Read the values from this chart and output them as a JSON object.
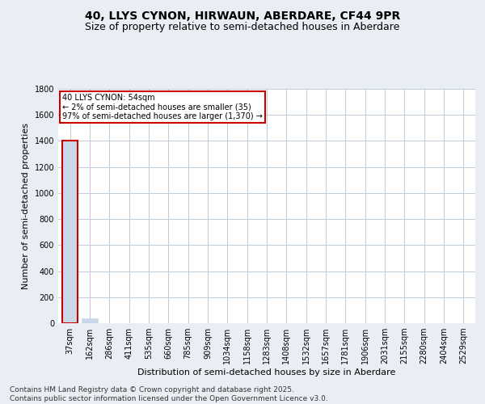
{
  "title": "40, LLYS CYNON, HIRWAUN, ABERDARE, CF44 9PR",
  "subtitle": "Size of property relative to semi-detached houses in Aberdare",
  "xlabel": "Distribution of semi-detached houses by size in Aberdare",
  "ylabel": "Number of semi-detached properties",
  "footer": "Contains HM Land Registry data © Crown copyright and database right 2025.\nContains public sector information licensed under the Open Government Licence v3.0.",
  "categories": [
    "37sqm",
    "162sqm",
    "286sqm",
    "411sqm",
    "535sqm",
    "660sqm",
    "785sqm",
    "909sqm",
    "1034sqm",
    "1158sqm",
    "1283sqm",
    "1408sqm",
    "1532sqm",
    "1657sqm",
    "1781sqm",
    "1906sqm",
    "2031sqm",
    "2155sqm",
    "2280sqm",
    "2404sqm",
    "2529sqm"
  ],
  "values": [
    1400,
    35,
    0,
    0,
    0,
    0,
    0,
    0,
    0,
    0,
    0,
    0,
    0,
    0,
    0,
    0,
    0,
    0,
    0,
    0,
    0
  ],
  "bar_colors": [
    "#c8d8e8",
    "#c8d8e8",
    "#c8d8e8",
    "#c8d8e8",
    "#c8d8e8",
    "#c8d8e8",
    "#c8d8e8",
    "#c8d8e8",
    "#c8d8e8",
    "#c8d8e8",
    "#c8d8e8",
    "#c8d8e8",
    "#c8d8e8",
    "#c8d8e8",
    "#c8d8e8",
    "#c8d8e8",
    "#c8d8e8",
    "#c8d8e8",
    "#c8d8e8",
    "#c8d8e8",
    "#c8d8e8"
  ],
  "highlight_bar_index": 0,
  "highlight_border_color": "#cc0000",
  "annotation_text": "40 LLYS CYNON: 54sqm\n← 2% of semi-detached houses are smaller (35)\n97% of semi-detached houses are larger (1,370) →",
  "ylim": [
    0,
    1800
  ],
  "yticks": [
    0,
    200,
    400,
    600,
    800,
    1000,
    1200,
    1400,
    1600,
    1800
  ],
  "background_color": "#e8eef4",
  "plot_background_color": "#ffffff",
  "grid_color": "#c0ccd8",
  "title_fontsize": 10,
  "subtitle_fontsize": 9,
  "axis_label_fontsize": 8,
  "tick_fontsize": 7,
  "footer_fontsize": 6.5
}
